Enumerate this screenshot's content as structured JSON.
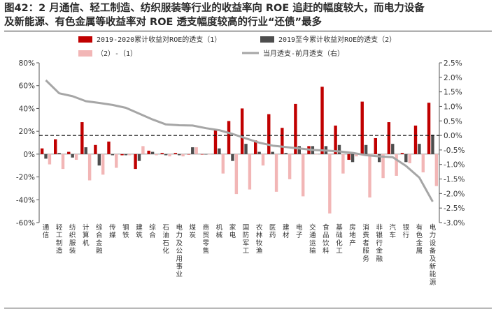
{
  "title": {
    "line1": "图42：2 月通信、轻工制造、纺织服装等行业的收益率向 ROE 追赶的幅度较大，而电力设备",
    "line2": "及新能源、有色金属等收益率对 ROE 透支幅度较高的行业“还债”最多"
  },
  "chart_data": {
    "type": "bar",
    "categories": [
      "通信",
      "轻工制造",
      "纺织服装",
      "计算机",
      "综合金融",
      "传媒",
      "钢铁",
      "建筑",
      "综合",
      "石油石化",
      "电力及公用事业",
      "煤炭",
      "商贸零售",
      "机械",
      "家电",
      "国防军工",
      "农林牧渔",
      "医药",
      "建材",
      "电子",
      "交通运输",
      "食品饮料",
      "基础化工",
      "房地产",
      "消费者服务",
      "非银行金融",
      "汽车",
      "银行",
      "有色金属",
      "电力设备及新能源"
    ],
    "ylim": [
      -60,
      80
    ],
    "yticks": [
      -60,
      -40,
      -20,
      0,
      20,
      40,
      60,
      80
    ],
    "y2lim": [
      -3.0,
      2.5
    ],
    "y2ticks": [
      -3.0,
      -2.5,
      -2.0,
      -1.5,
      -1.0,
      -0.5,
      0.0,
      0.5,
      1.0,
      1.5,
      2.0,
      2.5
    ],
    "y_tick_format": "percent",
    "reference_line_right_value": 0.0,
    "series": [
      {
        "name": "2019-2020累计收益对ROE的透支（1）",
        "axis": "left",
        "kind": "bar",
        "color": "#c00000",
        "values": [
          5,
          13,
          2,
          28,
          8,
          11,
          -1,
          -13,
          3,
          1,
          1,
          0,
          0,
          22,
          29,
          40,
          12,
          35,
          23,
          44,
          7,
          59,
          25,
          -5,
          46,
          14,
          28,
          1,
          25,
          45
        ]
      },
      {
        "name": "2019至今累计收益对ROE的透支（2）",
        "axis": "left",
        "kind": "bar",
        "color": "#4d4d4d",
        "values": [
          -4,
          1,
          -3,
          6,
          -10,
          -1,
          -1,
          -6,
          2,
          -1,
          -1,
          6,
          0,
          5,
          -6,
          9,
          2,
          2,
          1,
          7,
          7,
          7,
          8,
          -7,
          8,
          -7,
          9,
          -7,
          9,
          17
        ]
      },
      {
        "name": "（2）-（1）",
        "axis": "left",
        "kind": "bar",
        "color": "#f2b6b6",
        "values": [
          -9,
          -13,
          -5,
          -23,
          -18,
          -12,
          -1,
          7,
          -1,
          -2,
          -2,
          6,
          0,
          -17,
          -35,
          -31,
          -10,
          -33,
          -22,
          -37,
          0,
          -52,
          -17,
          -2,
          -38,
          -21,
          -19,
          -8,
          -16,
          -28
        ]
      },
      {
        "name": "当月透支-前月透支（右）",
        "axis": "right",
        "kind": "line",
        "color": "#a6a6a6",
        "values": [
          1.9,
          1.45,
          1.35,
          1.18,
          1.12,
          1.05,
          0.95,
          0.75,
          0.55,
          0.38,
          0.35,
          0.34,
          0.25,
          0.18,
          0.05,
          -0.1,
          -0.25,
          -0.35,
          -0.4,
          -0.45,
          -0.5,
          -0.52,
          -0.55,
          -0.6,
          -0.68,
          -0.72,
          -0.75,
          -1.05,
          -1.45,
          -2.28
        ]
      }
    ],
    "legend_placement": "top"
  }
}
